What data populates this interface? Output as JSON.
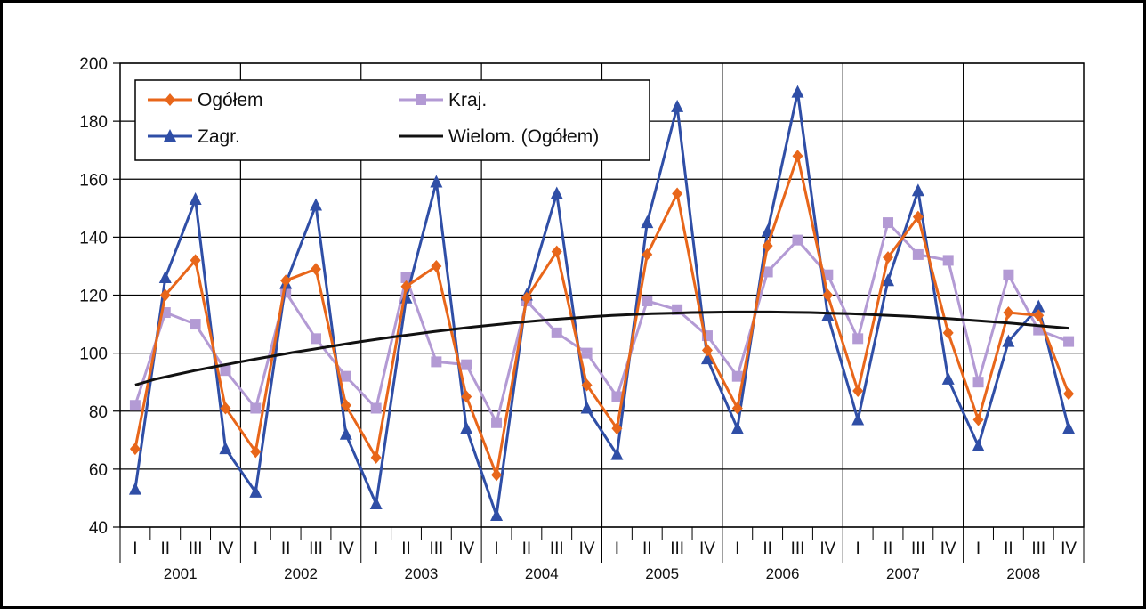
{
  "chart_data": {
    "type": "line",
    "title": "",
    "xlabel": "",
    "ylabel": "",
    "ylim": [
      40,
      200
    ],
    "yticks": [
      "40",
      "60",
      "80",
      "100",
      "120",
      "140",
      "160",
      "180",
      "200"
    ],
    "grid": true,
    "legend_position": "top-left",
    "quarters": [
      "I",
      "II",
      "III",
      "IV"
    ],
    "years": [
      "2001",
      "2002",
      "2003",
      "2004",
      "2005",
      "2006",
      "2007",
      "2008"
    ],
    "series": [
      {
        "name": "Ogółem",
        "color": "#e8661a",
        "marker": "diamond",
        "values": [
          67,
          120,
          132,
          81,
          66,
          125,
          129,
          82,
          64,
          123,
          130,
          85,
          58,
          119,
          135,
          89,
          74,
          134,
          155,
          101,
          81,
          137,
          168,
          120,
          87,
          133,
          147,
          107,
          77,
          114,
          113,
          86
        ]
      },
      {
        "name": "Kraj.",
        "color": "#b39ad4",
        "marker": "square",
        "values": [
          82,
          114,
          110,
          94,
          81,
          121,
          105,
          92,
          81,
          126,
          97,
          96,
          76,
          118,
          107,
          100,
          85,
          118,
          115,
          106,
          92,
          128,
          139,
          127,
          105,
          145,
          134,
          132,
          90,
          127,
          108,
          104
        ]
      },
      {
        "name": "Zagr.",
        "color": "#2f4ea6",
        "marker": "triangle",
        "values": [
          53,
          126,
          153,
          67,
          52,
          124,
          151,
          72,
          48,
          119,
          159,
          74,
          44,
          120,
          155,
          81,
          65,
          145,
          185,
          98,
          74,
          142,
          190,
          113,
          77,
          125,
          156,
          91,
          68,
          104,
          116,
          74
        ]
      },
      {
        "name": "Wielom. (Ogółem)",
        "color": "#111111",
        "marker": "none",
        "values": [
          89,
          91,
          92.5,
          94,
          95.3,
          96.6,
          97.9,
          99.1,
          100.3,
          101.4,
          102.5,
          103.6,
          104.6,
          105.6,
          106.5,
          107.4,
          108.2,
          109,
          109.7,
          110.4,
          111,
          111.6,
          112.1,
          112.6,
          113,
          113.3,
          113.6,
          113.8,
          114,
          114.1,
          114.2,
          114.2,
          114.2,
          114.1,
          114,
          113.8,
          113.6,
          113.3,
          113,
          112.7,
          112.3,
          111.9,
          111.4,
          110.9,
          110.4,
          109.8,
          109.2,
          108.6
        ]
      }
    ]
  }
}
